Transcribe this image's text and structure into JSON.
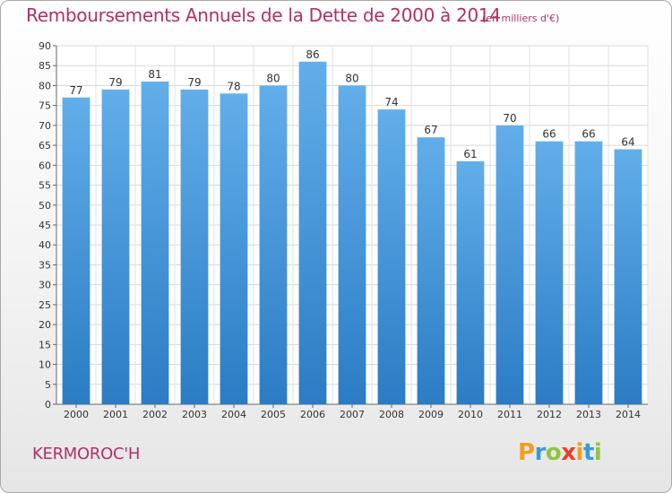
{
  "title": "Remboursements Annuels de la Dette de 2000 à 2014",
  "subtitle": "(en milliers d'€)",
  "commune": "KERMOROC'H",
  "logo": {
    "letters": [
      "P",
      "r",
      "o",
      "x",
      "i",
      "t",
      "i"
    ],
    "colors": [
      "#f0a020",
      "#3a9ad9",
      "#8cc63f",
      "#e8402a",
      "#f0a020",
      "#3a9ad9",
      "#8cc63f"
    ]
  },
  "colors": {
    "bar_top": "#62aeea",
    "bar_bottom": "#2b7cc4",
    "title": "#b0306a"
  },
  "chart_data": {
    "type": "bar",
    "categories": [
      "2000",
      "2001",
      "2002",
      "2003",
      "2004",
      "2005",
      "2006",
      "2007",
      "2008",
      "2009",
      "2010",
      "2011",
      "2012",
      "2013",
      "2014"
    ],
    "values": [
      77,
      79,
      81,
      79,
      78,
      80,
      86,
      80,
      74,
      67,
      61,
      70,
      66,
      66,
      64
    ],
    "ylim": [
      0,
      90
    ],
    "yticks": [
      0,
      5,
      10,
      15,
      20,
      25,
      30,
      35,
      40,
      45,
      50,
      55,
      60,
      65,
      70,
      75,
      80,
      85,
      90
    ],
    "grid": true,
    "data_labels": true
  }
}
